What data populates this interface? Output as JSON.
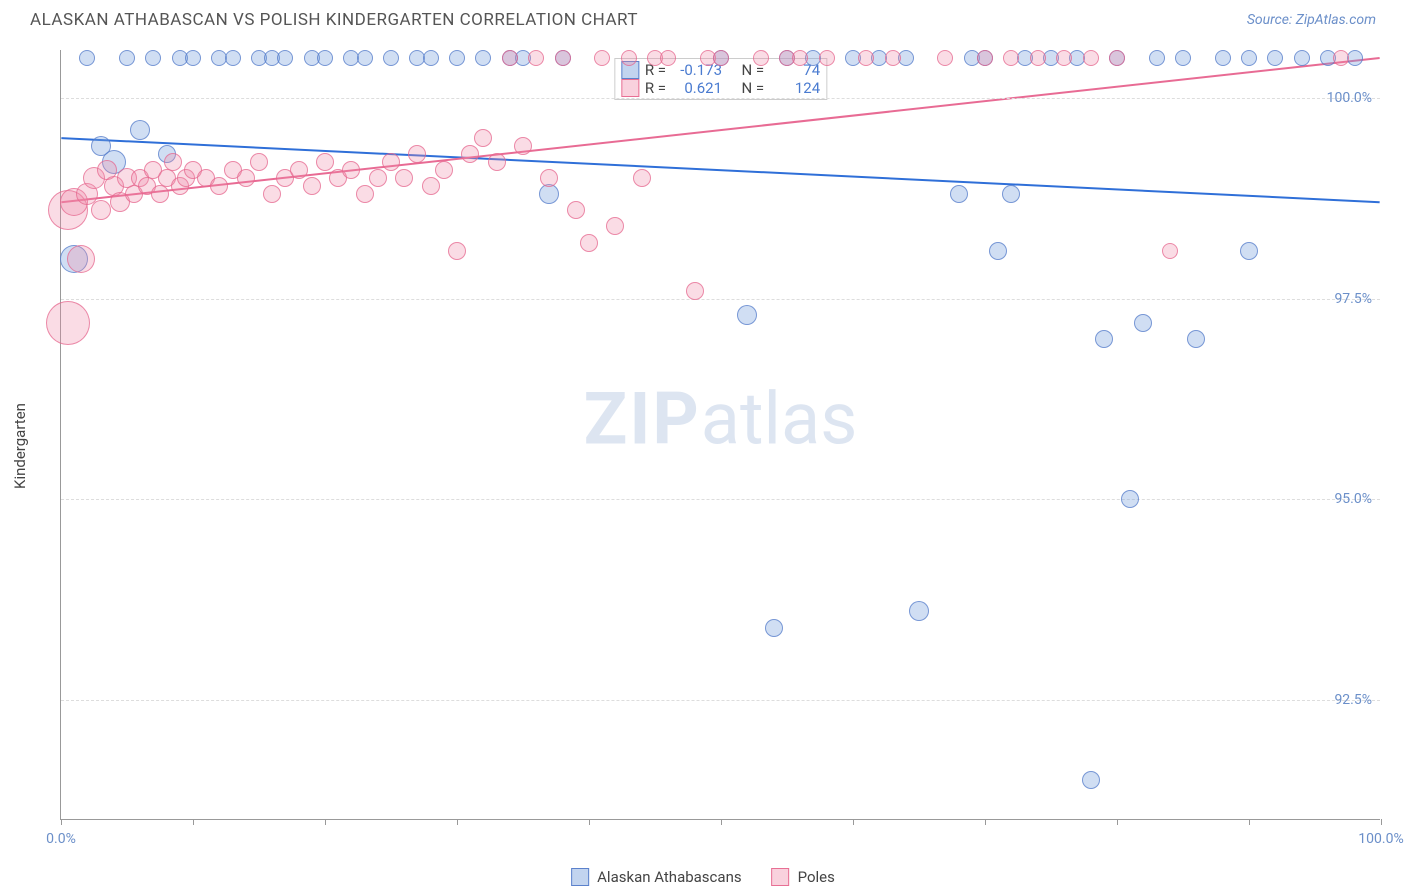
{
  "title": "ALASKAN ATHABASCAN VS POLISH KINDERGARTEN CORRELATION CHART",
  "source_label": "Source: ZipAtlas.com",
  "ylabel": "Kindergarten",
  "watermark": {
    "bold": "ZIP",
    "rest": "atlas"
  },
  "chart": {
    "type": "scatter",
    "background_color": "#ffffff",
    "grid_color": "#dddddd",
    "axis_color": "#999999",
    "tick_color": "#6b8fc9",
    "text_color": "#444444",
    "xlim": [
      0,
      100
    ],
    "ylim": [
      91.0,
      100.6
    ],
    "xticks": [
      0,
      10,
      20,
      30,
      40,
      50,
      60,
      70,
      80,
      90,
      100
    ],
    "xtick_labels": {
      "0": "0.0%",
      "100": "100.0%"
    },
    "yticks": [
      92.5,
      95.0,
      97.5,
      100.0
    ],
    "ytick_labels": [
      "92.5%",
      "95.0%",
      "97.5%",
      "100.0%"
    ],
    "series": [
      {
        "name": "Alaskan Athabascans",
        "key": "blue",
        "color_fill": "rgba(120,160,220,0.35)",
        "color_stroke": "rgba(80,120,200,0.7)",
        "regression": {
          "y_at_x0": 99.5,
          "y_at_x100": 98.7,
          "stroke": "#2f6fd8",
          "width": 2
        },
        "stats": {
          "R": "-0.173",
          "N": "74"
        },
        "points": [
          {
            "x": 1,
            "y": 98.0,
            "r": 14
          },
          {
            "x": 2,
            "y": 100.5,
            "r": 8
          },
          {
            "x": 3,
            "y": 99.4,
            "r": 10
          },
          {
            "x": 4,
            "y": 99.2,
            "r": 12
          },
          {
            "x": 5,
            "y": 100.5,
            "r": 8
          },
          {
            "x": 6,
            "y": 99.6,
            "r": 10
          },
          {
            "x": 7,
            "y": 100.5,
            "r": 8
          },
          {
            "x": 8,
            "y": 99.3,
            "r": 9
          },
          {
            "x": 9,
            "y": 100.5,
            "r": 8
          },
          {
            "x": 10,
            "y": 100.5,
            "r": 8
          },
          {
            "x": 12,
            "y": 100.5,
            "r": 8
          },
          {
            "x": 13,
            "y": 100.5,
            "r": 8
          },
          {
            "x": 15,
            "y": 100.5,
            "r": 8
          },
          {
            "x": 16,
            "y": 100.5,
            "r": 8
          },
          {
            "x": 17,
            "y": 100.5,
            "r": 8
          },
          {
            "x": 19,
            "y": 100.5,
            "r": 8
          },
          {
            "x": 20,
            "y": 100.5,
            "r": 8
          },
          {
            "x": 22,
            "y": 100.5,
            "r": 8
          },
          {
            "x": 23,
            "y": 100.5,
            "r": 8
          },
          {
            "x": 25,
            "y": 100.5,
            "r": 8
          },
          {
            "x": 27,
            "y": 100.5,
            "r": 8
          },
          {
            "x": 28,
            "y": 100.5,
            "r": 8
          },
          {
            "x": 30,
            "y": 100.5,
            "r": 8
          },
          {
            "x": 32,
            "y": 100.5,
            "r": 8
          },
          {
            "x": 34,
            "y": 100.5,
            "r": 8
          },
          {
            "x": 35,
            "y": 100.5,
            "r": 8
          },
          {
            "x": 37,
            "y": 98.8,
            "r": 10
          },
          {
            "x": 38,
            "y": 100.5,
            "r": 8
          },
          {
            "x": 50,
            "y": 100.5,
            "r": 8
          },
          {
            "x": 52,
            "y": 97.3,
            "r": 10
          },
          {
            "x": 54,
            "y": 93.4,
            "r": 9
          },
          {
            "x": 55,
            "y": 100.5,
            "r": 8
          },
          {
            "x": 57,
            "y": 100.5,
            "r": 8
          },
          {
            "x": 60,
            "y": 100.5,
            "r": 8
          },
          {
            "x": 62,
            "y": 100.5,
            "r": 8
          },
          {
            "x": 64,
            "y": 100.5,
            "r": 8
          },
          {
            "x": 65,
            "y": 93.6,
            "r": 10
          },
          {
            "x": 68,
            "y": 98.8,
            "r": 9
          },
          {
            "x": 69,
            "y": 100.5,
            "r": 8
          },
          {
            "x": 70,
            "y": 100.5,
            "r": 8
          },
          {
            "x": 71,
            "y": 98.1,
            "r": 9
          },
          {
            "x": 72,
            "y": 98.8,
            "r": 9
          },
          {
            "x": 73,
            "y": 100.5,
            "r": 8
          },
          {
            "x": 75,
            "y": 100.5,
            "r": 8
          },
          {
            "x": 77,
            "y": 100.5,
            "r": 8
          },
          {
            "x": 78,
            "y": 91.5,
            "r": 9
          },
          {
            "x": 79,
            "y": 97.0,
            "r": 9
          },
          {
            "x": 80,
            "y": 100.5,
            "r": 8
          },
          {
            "x": 81,
            "y": 95.0,
            "r": 9
          },
          {
            "x": 82,
            "y": 97.2,
            "r": 9
          },
          {
            "x": 83,
            "y": 100.5,
            "r": 8
          },
          {
            "x": 85,
            "y": 100.5,
            "r": 8
          },
          {
            "x": 86,
            "y": 97.0,
            "r": 9
          },
          {
            "x": 88,
            "y": 100.5,
            "r": 8
          },
          {
            "x": 90,
            "y": 100.5,
            "r": 8
          },
          {
            "x": 90,
            "y": 98.1,
            "r": 9
          },
          {
            "x": 92,
            "y": 100.5,
            "r": 8
          },
          {
            "x": 94,
            "y": 100.5,
            "r": 8
          },
          {
            "x": 96,
            "y": 100.5,
            "r": 8
          },
          {
            "x": 98,
            "y": 100.5,
            "r": 8
          }
        ]
      },
      {
        "name": "Poles",
        "key": "pink",
        "color_fill": "rgba(240,140,170,0.3)",
        "color_stroke": "rgba(230,100,140,0.7)",
        "regression": {
          "y_at_x0": 98.7,
          "y_at_x100": 100.5,
          "stroke": "#e86b94",
          "width": 2
        },
        "stats": {
          "R": "0.621",
          "N": "124"
        },
        "points": [
          {
            "x": 0.5,
            "y": 98.6,
            "r": 20
          },
          {
            "x": 0.5,
            "y": 97.2,
            "r": 22
          },
          {
            "x": 1,
            "y": 98.7,
            "r": 14
          },
          {
            "x": 1.5,
            "y": 98.0,
            "r": 14
          },
          {
            "x": 2,
            "y": 98.8,
            "r": 11
          },
          {
            "x": 2.5,
            "y": 99.0,
            "r": 11
          },
          {
            "x": 3,
            "y": 98.6,
            "r": 10
          },
          {
            "x": 3.5,
            "y": 99.1,
            "r": 10
          },
          {
            "x": 4,
            "y": 98.9,
            "r": 10
          },
          {
            "x": 4.5,
            "y": 98.7,
            "r": 10
          },
          {
            "x": 5,
            "y": 99.0,
            "r": 10
          },
          {
            "x": 5.5,
            "y": 98.8,
            "r": 9
          },
          {
            "x": 6,
            "y": 99.0,
            "r": 9
          },
          {
            "x": 6.5,
            "y": 98.9,
            "r": 9
          },
          {
            "x": 7,
            "y": 99.1,
            "r": 9
          },
          {
            "x": 7.5,
            "y": 98.8,
            "r": 9
          },
          {
            "x": 8,
            "y": 99.0,
            "r": 9
          },
          {
            "x": 8.5,
            "y": 99.2,
            "r": 9
          },
          {
            "x": 9,
            "y": 98.9,
            "r": 9
          },
          {
            "x": 9.5,
            "y": 99.0,
            "r": 9
          },
          {
            "x": 10,
            "y": 99.1,
            "r": 9
          },
          {
            "x": 11,
            "y": 99.0,
            "r": 9
          },
          {
            "x": 12,
            "y": 98.9,
            "r": 9
          },
          {
            "x": 13,
            "y": 99.1,
            "r": 9
          },
          {
            "x": 14,
            "y": 99.0,
            "r": 9
          },
          {
            "x": 15,
            "y": 99.2,
            "r": 9
          },
          {
            "x": 16,
            "y": 98.8,
            "r": 9
          },
          {
            "x": 17,
            "y": 99.0,
            "r": 9
          },
          {
            "x": 18,
            "y": 99.1,
            "r": 9
          },
          {
            "x": 19,
            "y": 98.9,
            "r": 9
          },
          {
            "x": 20,
            "y": 99.2,
            "r": 9
          },
          {
            "x": 21,
            "y": 99.0,
            "r": 9
          },
          {
            "x": 22,
            "y": 99.1,
            "r": 9
          },
          {
            "x": 23,
            "y": 98.8,
            "r": 9
          },
          {
            "x": 24,
            "y": 99.0,
            "r": 9
          },
          {
            "x": 25,
            "y": 99.2,
            "r": 9
          },
          {
            "x": 26,
            "y": 99.0,
            "r": 9
          },
          {
            "x": 27,
            "y": 99.3,
            "r": 9
          },
          {
            "x": 28,
            "y": 98.9,
            "r": 9
          },
          {
            "x": 29,
            "y": 99.1,
            "r": 9
          },
          {
            "x": 30,
            "y": 98.1,
            "r": 9
          },
          {
            "x": 31,
            "y": 99.3,
            "r": 9
          },
          {
            "x": 32,
            "y": 99.5,
            "r": 9
          },
          {
            "x": 33,
            "y": 99.2,
            "r": 9
          },
          {
            "x": 34,
            "y": 100.5,
            "r": 8
          },
          {
            "x": 35,
            "y": 99.4,
            "r": 9
          },
          {
            "x": 36,
            "y": 100.5,
            "r": 8
          },
          {
            "x": 37,
            "y": 99.0,
            "r": 9
          },
          {
            "x": 38,
            "y": 100.5,
            "r": 8
          },
          {
            "x": 39,
            "y": 98.6,
            "r": 9
          },
          {
            "x": 40,
            "y": 98.2,
            "r": 9
          },
          {
            "x": 41,
            "y": 100.5,
            "r": 8
          },
          {
            "x": 42,
            "y": 98.4,
            "r": 9
          },
          {
            "x": 43,
            "y": 100.5,
            "r": 8
          },
          {
            "x": 44,
            "y": 99.0,
            "r": 9
          },
          {
            "x": 45,
            "y": 100.5,
            "r": 8
          },
          {
            "x": 46,
            "y": 100.5,
            "r": 8
          },
          {
            "x": 48,
            "y": 97.6,
            "r": 9
          },
          {
            "x": 49,
            "y": 100.5,
            "r": 8
          },
          {
            "x": 50,
            "y": 100.5,
            "r": 8
          },
          {
            "x": 53,
            "y": 100.5,
            "r": 8
          },
          {
            "x": 55,
            "y": 100.5,
            "r": 8
          },
          {
            "x": 56,
            "y": 100.5,
            "r": 8
          },
          {
            "x": 58,
            "y": 100.5,
            "r": 8
          },
          {
            "x": 61,
            "y": 100.5,
            "r": 8
          },
          {
            "x": 63,
            "y": 100.5,
            "r": 8
          },
          {
            "x": 67,
            "y": 100.5,
            "r": 8
          },
          {
            "x": 70,
            "y": 100.5,
            "r": 8
          },
          {
            "x": 72,
            "y": 100.5,
            "r": 8
          },
          {
            "x": 74,
            "y": 100.5,
            "r": 8
          },
          {
            "x": 76,
            "y": 100.5,
            "r": 8
          },
          {
            "x": 78,
            "y": 100.5,
            "r": 8
          },
          {
            "x": 80,
            "y": 100.5,
            "r": 8
          },
          {
            "x": 84,
            "y": 98.1,
            "r": 8
          },
          {
            "x": 97,
            "y": 100.5,
            "r": 8
          }
        ]
      }
    ]
  },
  "legend": [
    {
      "label": "Alaskan Athabascans",
      "swatch": "blue"
    },
    {
      "label": "Poles",
      "swatch": "pink"
    }
  ],
  "stats_labels": {
    "R": "R =",
    "N": "N ="
  }
}
